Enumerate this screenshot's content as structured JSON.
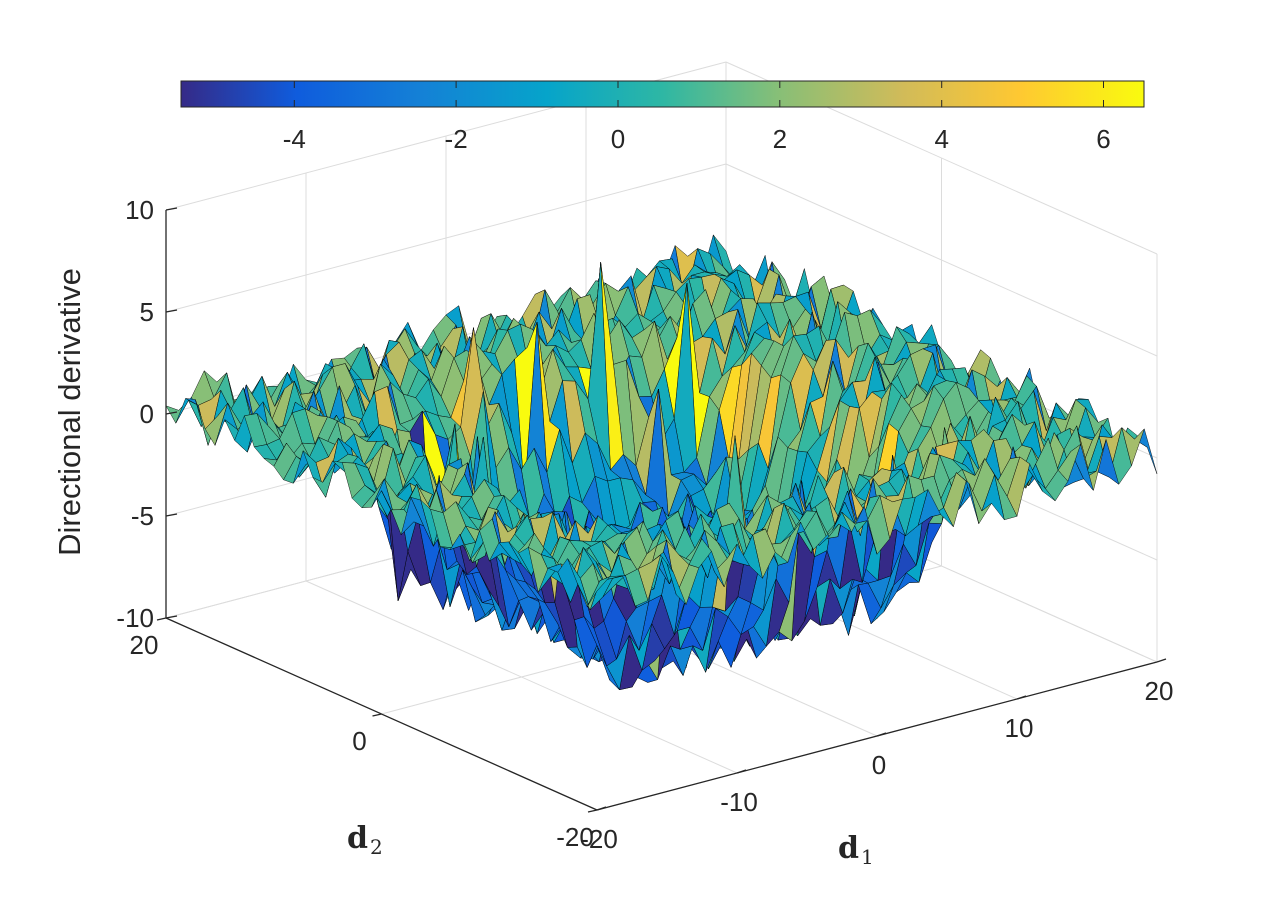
{
  "chart_data": {
    "type": "surface3d",
    "xlabel_main": "d",
    "xlabel_sub": "1",
    "ylabel_main": "d",
    "ylabel_sub": "2",
    "zlabel": "Directional derivative",
    "xlim": [
      -20,
      20
    ],
    "ylim": [
      -20,
      20
    ],
    "zlim": [
      -10,
      10
    ],
    "xticks": [
      "-20",
      "-10",
      "0",
      "10",
      "20"
    ],
    "yticks": [
      "20",
      "0",
      "-20"
    ],
    "zticks": [
      "10",
      "5",
      "0",
      "-5",
      "-10"
    ],
    "colorbar": {
      "orientation": "horizontal",
      "position": "top",
      "range": [
        -5.4,
        6.5
      ],
      "ticks": [
        "-4",
        "-2",
        "0",
        "2",
        "4",
        "6"
      ],
      "colormap": "parula"
    },
    "surface": {
      "description_values": {
        "outer_plateau_level": 0.3,
        "inner_depression_level": -7.5,
        "depression_half_width": 12,
        "noise_amplitude": 1.4
      }
    },
    "grid": true
  }
}
